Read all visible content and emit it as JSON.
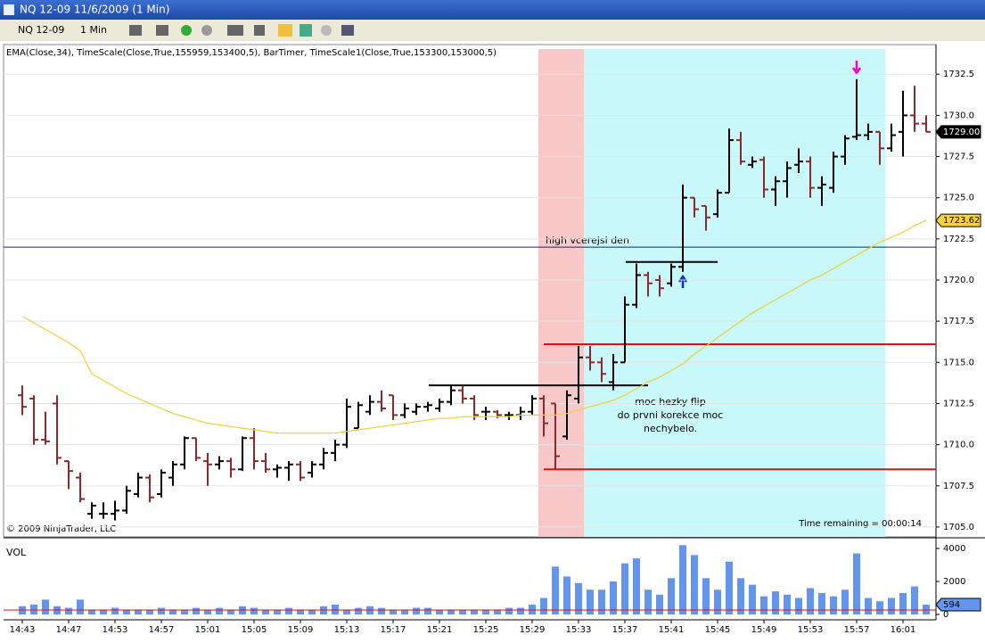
{
  "window_title": "NQ 12-09  11/6/2009 (1 Min)",
  "toolbar": {
    "instrument": "NQ 12-09",
    "interval": "1 Min"
  },
  "chart_data": {
    "type": "ohlc",
    "indicator_label": "EMA(Close,34), TimeScale(Close,True,155959,153400,5), BarTimer, TimeScale1(Close,True,153300,153000,5)",
    "copyright": "© 2009 NinjaTrader, LLC",
    "time_remaining": "Time remaining = 00:00:14",
    "categories": [
      "14:43",
      null,
      null,
      null,
      "14:47",
      null,
      null,
      null,
      "14:53",
      null,
      null,
      null,
      "14:57",
      null,
      null,
      null,
      "15:01",
      null,
      null,
      null,
      "15:05",
      null,
      null,
      null,
      "15:09",
      null,
      null,
      null,
      "15:13",
      null,
      null,
      null,
      "15:17",
      null,
      null,
      null,
      "15:21",
      null,
      null,
      null,
      "15:25",
      null,
      null,
      null,
      "15:29",
      null,
      null,
      null,
      "15:33",
      null,
      null,
      null,
      "15:37",
      null,
      null,
      null,
      "15:41",
      null,
      null,
      null,
      "15:45",
      null,
      null,
      null,
      "15:49",
      null,
      null,
      null,
      "15:53",
      null,
      null,
      null,
      "15:57",
      null,
      null,
      null,
      "16:01",
      null,
      null
    ],
    "open": [
      1713.0,
      1712.8,
      1710.3,
      1712.5,
      1709.0,
      1708.0,
      1705.8,
      1705.8,
      1705.8,
      1706.0,
      1707.0,
      1708.0,
      1707.0,
      1708.0,
      1708.8,
      1710.4,
      1709.0,
      1708.8,
      1709.0,
      1708.5,
      1710.4,
      1709.0,
      1708.5,
      1708.6,
      1708.8,
      1708.3,
      1708.8,
      1709.5,
      1710.0,
      1711.0,
      1712.0,
      1712.6,
      1713.0,
      1711.8,
      1712.0,
      1712.3,
      1712.2,
      1712.6,
      1713.3,
      1712.8,
      1712.0,
      1712.0,
      1711.8,
      1711.8,
      1712.0,
      1712.8,
      1712.5,
      1710.5,
      1712.8,
      1715.3,
      1715.0,
      1713.8,
      1715.0,
      1718.5,
      1720.3,
      1720.0,
      1719.8,
      1720.8,
      1725.0,
      1724.5,
      1724.0,
      1725.3,
      1728.5,
      1727.0,
      1727.3,
      1725.5,
      1726.0,
      1727.0,
      1727.2,
      1725.6,
      1725.6,
      1727.5,
      1728.7,
      1728.8,
      1729.0,
      1728.0,
      1729.0,
      1730.0,
      1729.5
    ],
    "high": [
      1713.6,
      1713.0,
      1712.0,
      1713.0,
      1709.0,
      1708.3,
      1706.5,
      1706.5,
      1706.6,
      1707.5,
      1708.3,
      1708.2,
      1708.5,
      1709.0,
      1710.5,
      1710.4,
      1709.5,
      1709.3,
      1709.2,
      1710.5,
      1711.0,
      1709.5,
      1708.8,
      1709.0,
      1709.0,
      1709.0,
      1709.8,
      1710.3,
      1712.8,
      1712.6,
      1713.0,
      1713.3,
      1713.0,
      1712.5,
      1712.5,
      1712.6,
      1712.8,
      1713.6,
      1713.6,
      1713.0,
      1712.3,
      1712.1,
      1712.0,
      1712.3,
      1713.0,
      1713.0,
      1712.5,
      1713.3,
      1716.0,
      1716.0,
      1715.3,
      1715.5,
      1719.0,
      1721.0,
      1720.5,
      1720.3,
      1721.0,
      1725.8,
      1725.0,
      1724.5,
      1725.5,
      1729.2,
      1729.0,
      1727.5,
      1727.5,
      1726.3,
      1727.2,
      1728.0,
      1727.5,
      1726.3,
      1727.8,
      1728.8,
      1732.2,
      1729.5,
      1729.0,
      1729.5,
      1731.5,
      1731.8,
      1730.0
    ],
    "low": [
      1711.8,
      1710.0,
      1710.0,
      1708.8,
      1707.3,
      1706.5,
      1705.5,
      1705.5,
      1705.4,
      1705.8,
      1706.8,
      1706.5,
      1706.8,
      1707.5,
      1708.5,
      1709.0,
      1707.5,
      1708.5,
      1708.0,
      1708.4,
      1708.5,
      1708.3,
      1708.0,
      1707.8,
      1707.8,
      1708.0,
      1708.5,
      1709.0,
      1709.8,
      1711.0,
      1711.8,
      1712.0,
      1711.5,
      1711.6,
      1711.8,
      1712.0,
      1712.0,
      1712.4,
      1712.5,
      1711.5,
      1711.5,
      1711.6,
      1711.5,
      1711.5,
      1711.8,
      1710.5,
      1708.5,
      1710.3,
      1712.5,
      1714.5,
      1713.8,
      1713.3,
      1715.0,
      1718.3,
      1719.0,
      1719.0,
      1719.6,
      1720.5,
      1723.8,
      1723.0,
      1723.8,
      1725.3,
      1727.0,
      1726.8,
      1725.0,
      1724.5,
      1725.0,
      1726.5,
      1725.0,
      1724.5,
      1725.3,
      1727.0,
      1728.5,
      1728.5,
      1727.0,
      1727.8,
      1727.5,
      1729.0,
      1729.0
    ],
    "close": [
      1712.3,
      1710.3,
      1710.2,
      1709.2,
      1708.4,
      1706.7,
      1706.3,
      1705.8,
      1706.0,
      1707.2,
      1708.0,
      1706.8,
      1708.3,
      1708.8,
      1710.4,
      1709.2,
      1708.8,
      1709.0,
      1708.5,
      1710.4,
      1709.0,
      1708.5,
      1708.6,
      1708.8,
      1708.0,
      1708.8,
      1709.5,
      1710.0,
      1712.3,
      1712.4,
      1712.6,
      1712.2,
      1711.8,
      1712.2,
      1712.3,
      1712.4,
      1712.6,
      1713.3,
      1712.8,
      1711.8,
      1712.0,
      1711.8,
      1711.8,
      1712.0,
      1712.8,
      1711.3,
      1709.3,
      1713.0,
      1715.3,
      1715.0,
      1714.3,
      1715.0,
      1718.5,
      1720.3,
      1719.8,
      1719.5,
      1720.8,
      1725.0,
      1724.3,
      1723.8,
      1725.3,
      1728.5,
      1727.2,
      1727.2,
      1725.5,
      1726.0,
      1726.8,
      1727.2,
      1725.6,
      1725.8,
      1727.5,
      1728.6,
      1728.8,
      1729.0,
      1728.0,
      1728.8,
      1730.0,
      1729.5,
      1729.0
    ],
    "colors": {
      "up": "#000000",
      "down": "#8b2a2a"
    },
    "ylim": [
      1704.4,
      1734.3
    ],
    "yticks": [
      {
        "value": 1705,
        "label": "1705.0"
      },
      {
        "value": 1707.5,
        "label": "1707.5"
      },
      {
        "value": 1710,
        "label": "1710.0"
      },
      {
        "value": 1712.5,
        "label": "1712.5"
      },
      {
        "value": 1715,
        "label": "1715.0"
      },
      {
        "value": 1717.5,
        "label": "1717.5"
      },
      {
        "value": 1720,
        "label": "1720.0"
      },
      {
        "value": 1722.5,
        "label": "1722.5"
      },
      {
        "value": 1725,
        "label": "1725.0"
      },
      {
        "value": 1727.5,
        "label": "1727.5"
      },
      {
        "value": 1730,
        "label": "1730.0"
      },
      {
        "value": 1732.5,
        "label": "1732.5"
      }
    ],
    "grid": true,
    "ema": {
      "color": "#f2cf3a",
      "values": [
        1717.8,
        1717.4,
        1717.0,
        1716.6,
        1716.2,
        1715.7,
        1714.3,
        1713.9,
        1713.5,
        1713.1,
        1712.8,
        1712.5,
        1712.2,
        1711.9,
        1711.7,
        1711.5,
        1711.3,
        1711.2,
        1711.1,
        1711.0,
        1710.9,
        1710.8,
        1710.7,
        1710.7,
        1710.7,
        1710.7,
        1710.7,
        1710.7,
        1710.8,
        1710.9,
        1711.0,
        1711.1,
        1711.2,
        1711.3,
        1711.4,
        1711.5,
        1711.6,
        1711.6,
        1711.7,
        1711.7,
        1711.7,
        1711.7,
        1711.7,
        1711.8,
        1711.8,
        1711.8,
        1711.8,
        1711.9,
        1712.1,
        1712.3,
        1712.5,
        1712.7,
        1713.0,
        1713.4,
        1713.8,
        1714.1,
        1714.5,
        1714.9,
        1715.5,
        1716.0,
        1716.5,
        1717.0,
        1717.5,
        1718.0,
        1718.4,
        1718.8,
        1719.2,
        1719.6,
        1720.0,
        1720.3,
        1720.7,
        1721.1,
        1721.5,
        1721.9,
        1722.3,
        1722.6,
        1722.9,
        1723.3,
        1723.62
      ]
    },
    "last_price": {
      "value": 1729,
      "label": "1729.00"
    },
    "hlines": [
      {
        "value": 1722.0,
        "color": "#1a237e"
      },
      {
        "value": 1716.1,
        "color": "#e01010"
      },
      {
        "value": 1708.5,
        "color": "#e01010"
      },
      {
        "value": 1713.6,
        "color": "#000000"
      },
      {
        "value": 1721.1,
        "color": "#000000"
      }
    ],
    "annotations": [
      "high vcerejsi den",
      "moc hezky flip",
      "do prvni korekce moc",
      "nechybelo."
    ],
    "volume": {
      "label": "VOL",
      "color": "#6495ed",
      "values": [
        500,
        600,
        900,
        500,
        400,
        900,
        300,
        300,
        400,
        300,
        300,
        300,
        400,
        300,
        300,
        400,
        300,
        400,
        300,
        500,
        400,
        300,
        300,
        400,
        300,
        300,
        500,
        600,
        300,
        400,
        500,
        400,
        300,
        300,
        400,
        400,
        300,
        300,
        300,
        300,
        300,
        300,
        400,
        400,
        600,
        1000,
        2900,
        2300,
        1900,
        1500,
        1500,
        2000,
        3100,
        3400,
        1500,
        1200,
        2200,
        4200,
        3600,
        2200,
        1500,
        3200,
        2200,
        1800,
        1100,
        1400,
        1200,
        1000,
        1600,
        1300,
        1100,
        1500,
        3700,
        1000,
        800,
        1000,
        1300,
        1700,
        594
      ],
      "ylim": [
        0,
        4000
      ],
      "yticks": [
        0,
        2000,
        4000
      ],
      "average": 270
    }
  }
}
